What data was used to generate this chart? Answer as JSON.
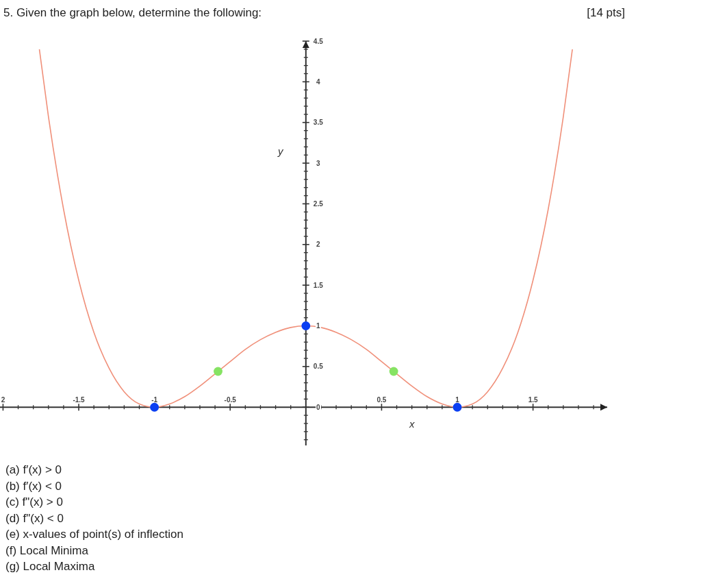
{
  "chart_data": {
    "type": "line",
    "title": "5. Given the graph below, determine the following:",
    "xlabel": "x",
    "ylabel": "y",
    "xlim": [
      -2.02,
      1.99
    ],
    "ylim": [
      -0.47,
      4.5
    ],
    "xticks": [
      {
        "value": -2,
        "label": "2"
      },
      {
        "value": -1.9,
        "label": null
      },
      {
        "value": -1.8,
        "label": null
      },
      {
        "value": -1.7,
        "label": null
      },
      {
        "value": -1.6,
        "label": null
      },
      {
        "value": -1.5,
        "label": "-1.5"
      },
      {
        "value": -1.4,
        "label": null
      },
      {
        "value": -1.3,
        "label": null
      },
      {
        "value": -1.2,
        "label": null
      },
      {
        "value": -1.1,
        "label": null
      },
      {
        "value": -1,
        "label": "-1"
      },
      {
        "value": -0.9,
        "label": null
      },
      {
        "value": -0.8,
        "label": null
      },
      {
        "value": -0.7,
        "label": null
      },
      {
        "value": -0.6,
        "label": null
      },
      {
        "value": -0.5,
        "label": "-0.5"
      },
      {
        "value": -0.4,
        "label": null
      },
      {
        "value": -0.3,
        "label": null
      },
      {
        "value": -0.2,
        "label": null
      },
      {
        "value": -0.1,
        "label": null
      },
      {
        "value": 0.1,
        "label": null
      },
      {
        "value": 0.2,
        "label": null
      },
      {
        "value": 0.3,
        "label": null
      },
      {
        "value": 0.4,
        "label": null
      },
      {
        "value": 0.5,
        "label": "0.5"
      },
      {
        "value": 0.6,
        "label": null
      },
      {
        "value": 0.7,
        "label": null
      },
      {
        "value": 0.8,
        "label": null
      },
      {
        "value": 0.9,
        "label": null
      },
      {
        "value": 1,
        "label": "1"
      },
      {
        "value": 1.1,
        "label": null
      },
      {
        "value": 1.2,
        "label": null
      },
      {
        "value": 1.3,
        "label": null
      },
      {
        "value": 1.4,
        "label": null
      },
      {
        "value": 1.5,
        "label": "1.5"
      },
      {
        "value": 1.6,
        "label": null
      },
      {
        "value": 1.7,
        "label": null
      },
      {
        "value": 1.8,
        "label": null
      },
      {
        "value": 1.9,
        "label": null
      }
    ],
    "yticks": [
      {
        "value": -0.4,
        "label": null
      },
      {
        "value": -0.3,
        "label": null
      },
      {
        "value": -0.2,
        "label": null
      },
      {
        "value": -0.1,
        "label": null
      },
      0,
      {
        "value": 0.1,
        "label": null
      },
      {
        "value": 0.2,
        "label": null
      },
      {
        "value": 0.3,
        "label": null
      },
      {
        "value": 0.4,
        "label": null
      },
      0.5,
      {
        "value": 0.6,
        "label": null
      },
      {
        "value": 0.7,
        "label": null
      },
      {
        "value": 0.8,
        "label": null
      },
      {
        "value": 0.9,
        "label": null
      },
      1,
      {
        "value": 1.1,
        "label": null
      },
      {
        "value": 1.2,
        "label": null
      },
      {
        "value": 1.3,
        "label": null
      },
      {
        "value": 1.4,
        "label": null
      },
      1.5,
      {
        "value": 1.6,
        "label": null
      },
      {
        "value": 1.7,
        "label": null
      },
      {
        "value": 1.8,
        "label": null
      },
      {
        "value": 1.9,
        "label": null
      },
      2,
      {
        "value": 2.1,
        "label": null
      },
      {
        "value": 2.2,
        "label": null
      },
      {
        "value": 2.3,
        "label": null
      },
      {
        "value": 2.4,
        "label": null
      },
      2.5,
      {
        "value": 2.6,
        "label": null
      },
      {
        "value": 2.7,
        "label": null
      },
      {
        "value": 2.8,
        "label": null
      },
      {
        "value": 2.9,
        "label": null
      },
      3,
      {
        "value": 3.1,
        "label": null
      },
      {
        "value": 3.2,
        "label": null
      },
      {
        "value": 3.3,
        "label": null
      },
      {
        "value": 3.4,
        "label": null
      },
      3.5,
      {
        "value": 3.6,
        "label": null
      },
      {
        "value": 3.7,
        "label": null
      },
      {
        "value": 3.8,
        "label": null
      },
      {
        "value": 3.9,
        "label": null
      },
      4,
      {
        "value": 4.1,
        "label": null
      },
      {
        "value": 4.2,
        "label": null
      },
      {
        "value": 4.3,
        "label": null
      },
      {
        "value": 4.4,
        "label": null
      },
      4.5
    ],
    "grid": false,
    "marker": "circle",
    "series": [
      {
        "marker": "none",
        "color": "#f0907a",
        "x": [
          -1.76,
          -1.7,
          -1.6,
          -1.5,
          -1.4,
          -1.3,
          -1.2,
          -1.1,
          -1,
          -0.9,
          -0.8,
          -0.7,
          -0.6,
          -0.5,
          -0.4,
          -0.3,
          -0.2,
          -0.1,
          0,
          0.1,
          0.2,
          0.3,
          0.4,
          0.5,
          0.6,
          0.7,
          0.8,
          0.9,
          1,
          1.1,
          1.2,
          1.3,
          1.4,
          1.5,
          1.6,
          1.7,
          1.76
        ],
        "values": [
          4.4,
          3.57,
          2.43,
          1.56,
          0.92,
          0.48,
          0.19,
          0.04,
          0,
          0.04,
          0.13,
          0.26,
          0.41,
          0.56,
          0.71,
          0.83,
          0.92,
          0.98,
          1,
          0.98,
          0.92,
          0.83,
          0.71,
          0.56,
          0.41,
          0.26,
          0.13,
          0.04,
          0,
          0.04,
          0.19,
          0.48,
          0.92,
          1.56,
          2.43,
          3.57,
          4.4
        ]
      },
      {
        "type": "scatter",
        "color": "#0b3ff2",
        "x": [
          -1,
          0,
          1
        ],
        "values": [
          0,
          1,
          0
        ]
      },
      {
        "type": "scatter",
        "color": "#86e363",
        "x": [
          -0.58,
          0.58
        ],
        "values": [
          0.44,
          0.44
        ]
      }
    ],
    "annotations": [
      "[14 pts]",
      "(a) f′(x) > 0",
      "(b) f′(x) < 0",
      "(c) f\"(x) > 0",
      "(d) f\"(x) < 0",
      "(e) x-values of point(s) of inflection",
      "(f) Local Minima",
      "(g) Local Maxima"
    ]
  }
}
